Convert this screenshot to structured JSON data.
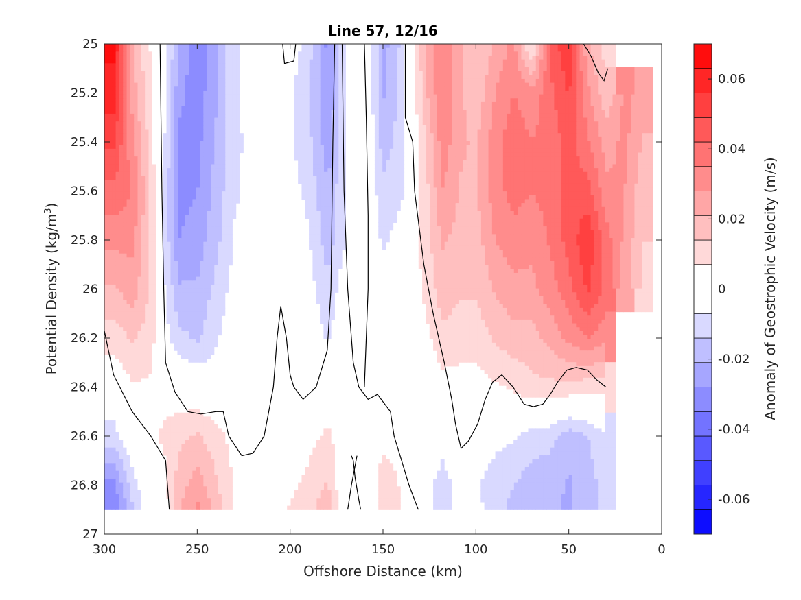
{
  "chart_data": {
    "type": "heatmap",
    "title": "Line 57, 12/16",
    "xlabel": "Offshore Distance (km)",
    "ylabel_main": "Potential Density (kg/m",
    "ylabel_sup": "3",
    "ylabel_end": ")",
    "colorbar_label": "Anomaly of Geostrophic Velocity (m/s)",
    "x_axis": {
      "min": 0,
      "max": 300,
      "reversed": true,
      "ticks": [
        300,
        250,
        200,
        150,
        100,
        50,
        0
      ]
    },
    "y_axis": {
      "min": 25,
      "max": 27,
      "reversed": true,
      "ticks": [
        25,
        25.2,
        25.4,
        25.6,
        25.8,
        26,
        26.2,
        26.4,
        26.6,
        26.8,
        27
      ],
      "tick_labels": [
        "25",
        "25.2",
        "25.4",
        "25.6",
        "25.8",
        "26",
        "26.2",
        "26.4",
        "26.6",
        "26.8",
        "27"
      ]
    },
    "colorbar": {
      "min": -0.07,
      "max": 0.07,
      "levels": 20,
      "ticks": [
        0.06,
        0.04,
        0.02,
        0,
        -0.02,
        -0.04,
        -0.06
      ],
      "tick_labels": [
        "0.06",
        "0.04",
        "0.02",
        "0",
        "-0.02",
        "-0.04",
        "-0.06"
      ]
    },
    "colors": {
      "positive": "#ff0000",
      "negative": "#0000ff",
      "zero": "#ffffff",
      "contour": "#000000"
    },
    "density_grid": [
      25,
      25.2,
      25.4,
      25.6,
      25.8,
      26,
      26.2,
      26.4,
      26.6,
      26.8,
      26.9
    ],
    "data_extent_density": 26.9,
    "columns": [
      {
        "x": 295,
        "v": [
          0.065,
          0.06,
          0.05,
          0.04,
          0.03,
          0.02,
          0.01,
          0.0,
          -0.01,
          -0.03,
          -0.035
        ]
      },
      {
        "x": 285,
        "v": [
          0.02,
          0.025,
          0.03,
          0.035,
          0.03,
          0.025,
          0.015,
          0.006,
          0.0,
          -0.01,
          -0.015
        ]
      },
      {
        "x": 275,
        "v": [
          0.006,
          0.008,
          0.01,
          0.012,
          0.012,
          0.012,
          0.01,
          0.006,
          0.006,
          0.0,
          0.0
        ]
      },
      {
        "x": 268,
        "v": [
          -0.002,
          -0.004,
          -0.006,
          -0.008,
          -0.008,
          -0.006,
          -0.003,
          0.004,
          0.008,
          0.004,
          0.0
        ]
      },
      {
        "x": 260,
        "v": [
          -0.022,
          -0.026,
          -0.03,
          -0.03,
          -0.028,
          -0.02,
          -0.012,
          0.002,
          0.012,
          0.018,
          0.02
        ]
      },
      {
        "x": 250,
        "v": [
          -0.034,
          -0.032,
          -0.03,
          -0.028,
          -0.025,
          -0.02,
          -0.015,
          0.0,
          0.015,
          0.025,
          0.03
        ]
      },
      {
        "x": 240,
        "v": [
          -0.022,
          -0.022,
          -0.02,
          -0.018,
          -0.016,
          -0.012,
          -0.008,
          -0.002,
          0.01,
          0.015,
          0.018
        ]
      },
      {
        "x": 230,
        "v": [
          -0.008,
          -0.008,
          -0.008,
          -0.008,
          -0.006,
          -0.004,
          -0.002,
          0.0,
          0.004,
          0.006,
          0.006
        ]
      },
      {
        "x": 218,
        "v": [
          -0.004,
          -0.004,
          -0.005,
          -0.004,
          -0.003,
          -0.002,
          -0.001,
          0.0,
          0.0,
          0.002,
          0.002
        ]
      },
      {
        "x": 205,
        "v": [
          -0.002,
          -0.004,
          -0.004,
          -0.002,
          0.0,
          0.0,
          0.0,
          0.0,
          0.0,
          0.004,
          0.006
        ]
      },
      {
        "x": 192,
        "v": [
          -0.008,
          -0.01,
          -0.01,
          -0.008,
          -0.004,
          -0.002,
          0.0,
          0.0,
          0.004,
          0.008,
          0.01
        ]
      },
      {
        "x": 180,
        "v": [
          -0.03,
          -0.028,
          -0.025,
          -0.02,
          -0.018,
          -0.012,
          -0.008,
          0.004,
          0.008,
          0.015,
          0.02
        ]
      },
      {
        "x": 168,
        "v": [
          0.0,
          -0.002,
          -0.004,
          -0.004,
          -0.004,
          0.0,
          0.002,
          0.006,
          0.002,
          -0.006,
          -0.006
        ]
      },
      {
        "x": 160,
        "v": [
          0.006,
          0.004,
          0.004,
          0.002,
          0.0,
          0.0,
          0.0,
          0.0,
          0.0,
          -0.004,
          -0.004
        ]
      },
      {
        "x": 150,
        "v": [
          -0.024,
          -0.022,
          -0.018,
          -0.012,
          -0.008,
          -0.004,
          0.0,
          0.0,
          0.004,
          0.012,
          0.012
        ]
      },
      {
        "x": 140,
        "v": [
          -0.012,
          -0.012,
          -0.01,
          -0.008,
          -0.004,
          -0.002,
          0.0,
          0.0,
          0.004,
          0.006,
          0.006
        ]
      },
      {
        "x": 128,
        "v": [
          0.02,
          0.018,
          0.012,
          0.01,
          0.01,
          0.008,
          0.004,
          0.0,
          -0.004,
          -0.006,
          -0.006
        ]
      },
      {
        "x": 118,
        "v": [
          0.035,
          0.035,
          0.032,
          0.028,
          0.022,
          0.018,
          0.012,
          0.004,
          -0.006,
          -0.008,
          -0.008
        ]
      },
      {
        "x": 108,
        "v": [
          0.022,
          0.022,
          0.022,
          0.02,
          0.018,
          0.015,
          0.01,
          0.004,
          -0.004,
          -0.006,
          -0.006
        ]
      },
      {
        "x": 100,
        "v": [
          0.014,
          0.016,
          0.02,
          0.02,
          0.018,
          0.015,
          0.01,
          0.004,
          -0.002,
          -0.006,
          -0.004
        ]
      },
      {
        "x": 90,
        "v": [
          0.022,
          0.028,
          0.032,
          0.032,
          0.028,
          0.022,
          0.015,
          0.006,
          -0.005,
          -0.01,
          -0.012
        ]
      },
      {
        "x": 80,
        "v": [
          0.03,
          0.035,
          0.04,
          0.038,
          0.032,
          0.026,
          0.018,
          0.008,
          -0.006,
          -0.014,
          -0.016
        ]
      },
      {
        "x": 70,
        "v": [
          0.004,
          0.03,
          0.035,
          0.035,
          0.03,
          0.026,
          0.018,
          0.012,
          -0.01,
          -0.018,
          -0.02
        ]
      },
      {
        "x": 60,
        "v": [
          0.045,
          0.04,
          0.038,
          0.038,
          0.036,
          0.032,
          0.024,
          0.012,
          -0.012,
          -0.018,
          -0.02
        ]
      },
      {
        "x": 50,
        "v": [
          0.055,
          0.05,
          0.045,
          0.045,
          0.045,
          0.04,
          0.03,
          0.012,
          -0.018,
          -0.022,
          -0.022
        ]
      },
      {
        "x": 40,
        "v": [
          0.022,
          0.03,
          0.036,
          0.045,
          0.055,
          0.05,
          0.035,
          0.01,
          -0.014,
          -0.018,
          -0.018
        ]
      },
      {
        "x": 30,
        "v": [
          0.01,
          0.016,
          0.025,
          0.03,
          0.038,
          0.04,
          0.03,
          0.01,
          -0.008,
          -0.01,
          -0.01
        ]
      },
      {
        "x": 20,
        "v": [
          null,
          0.03,
          0.03,
          0.028,
          0.026,
          0.024,
          null,
          null,
          null,
          null,
          null
        ]
      },
      {
        "x": 10,
        "v": [
          null,
          0.025,
          0.02,
          0.016,
          0.014,
          0.014,
          null,
          null,
          null,
          null,
          null
        ]
      }
    ],
    "zero_contours": [
      [
        [
          270,
          25.0
        ],
        [
          269,
          25.6
        ],
        [
          268,
          26.0
        ],
        [
          267,
          26.3
        ],
        [
          262,
          26.42
        ],
        [
          255,
          26.5
        ],
        [
          248,
          26.51
        ],
        [
          240,
          26.5
        ],
        [
          236,
          26.5
        ],
        [
          233,
          26.6
        ],
        [
          226,
          26.68
        ],
        [
          220,
          26.67
        ],
        [
          214,
          26.6
        ],
        [
          209,
          26.4
        ],
        [
          207,
          26.2
        ],
        [
          205,
          26.07
        ],
        [
          202,
          26.2
        ],
        [
          200,
          26.35
        ],
        [
          198,
          26.4
        ],
        [
          193,
          26.45
        ],
        [
          186,
          26.4
        ],
        [
          180,
          26.25
        ],
        [
          178,
          26.0
        ],
        [
          177,
          25.4
        ],
        [
          176,
          25.0
        ]
      ],
      [
        [
          300,
          26.17
        ],
        [
          295,
          26.35
        ],
        [
          285,
          26.5
        ],
        [
          275,
          26.6
        ],
        [
          267,
          26.7
        ],
        [
          265,
          26.9
        ]
      ],
      [
        [
          204,
          25.0
        ],
        [
          203,
          25.08
        ],
        [
          198,
          25.07
        ],
        [
          197,
          25.0
        ]
      ],
      [
        [
          172,
          25.0
        ],
        [
          171,
          25.6
        ],
        [
          169,
          26.0
        ],
        [
          166,
          26.3
        ],
        [
          163,
          26.4
        ],
        [
          158,
          26.45
        ],
        [
          153,
          26.43
        ],
        [
          146,
          26.5
        ],
        [
          144,
          26.6
        ],
        [
          140,
          26.7
        ],
        [
          136,
          26.8
        ],
        [
          131,
          26.9
        ]
      ],
      [
        [
          160,
          25.0
        ],
        [
          159,
          25.3
        ],
        [
          158,
          25.7
        ],
        [
          158,
          26.0
        ],
        [
          159,
          26.2
        ],
        [
          160,
          26.4
        ]
      ],
      [
        [
          138,
          25.0
        ],
        [
          138,
          25.3
        ],
        [
          134,
          25.4
        ],
        [
          133,
          25.6
        ],
        [
          128,
          25.9
        ],
        [
          123,
          26.1
        ],
        [
          117,
          26.3
        ],
        [
          113,
          26.45
        ],
        [
          111,
          26.55
        ],
        [
          108,
          26.65
        ],
        [
          104,
          26.62
        ],
        [
          99,
          26.55
        ],
        [
          95,
          26.45
        ],
        [
          91,
          26.38
        ],
        [
          86,
          26.35
        ],
        [
          80,
          26.4
        ],
        [
          74,
          26.47
        ],
        [
          69,
          26.48
        ],
        [
          64,
          26.47
        ],
        [
          60,
          26.43
        ],
        [
          56,
          26.38
        ],
        [
          51,
          26.33
        ],
        [
          46,
          26.32
        ],
        [
          40,
          26.33
        ],
        [
          35,
          26.37
        ],
        [
          30,
          26.4
        ]
      ],
      [
        [
          167,
          26.68
        ],
        [
          166,
          26.7
        ],
        [
          165,
          26.77
        ],
        [
          163,
          26.86
        ],
        [
          162,
          26.9
        ]
      ],
      [
        [
          169,
          26.9
        ],
        [
          167,
          26.8
        ],
        [
          164,
          26.68
        ]
      ],
      [
        [
          42,
          25.0
        ],
        [
          38,
          25.05
        ],
        [
          34,
          25.12
        ],
        [
          31,
          25.15
        ],
        [
          29,
          25.1
        ]
      ]
    ]
  }
}
